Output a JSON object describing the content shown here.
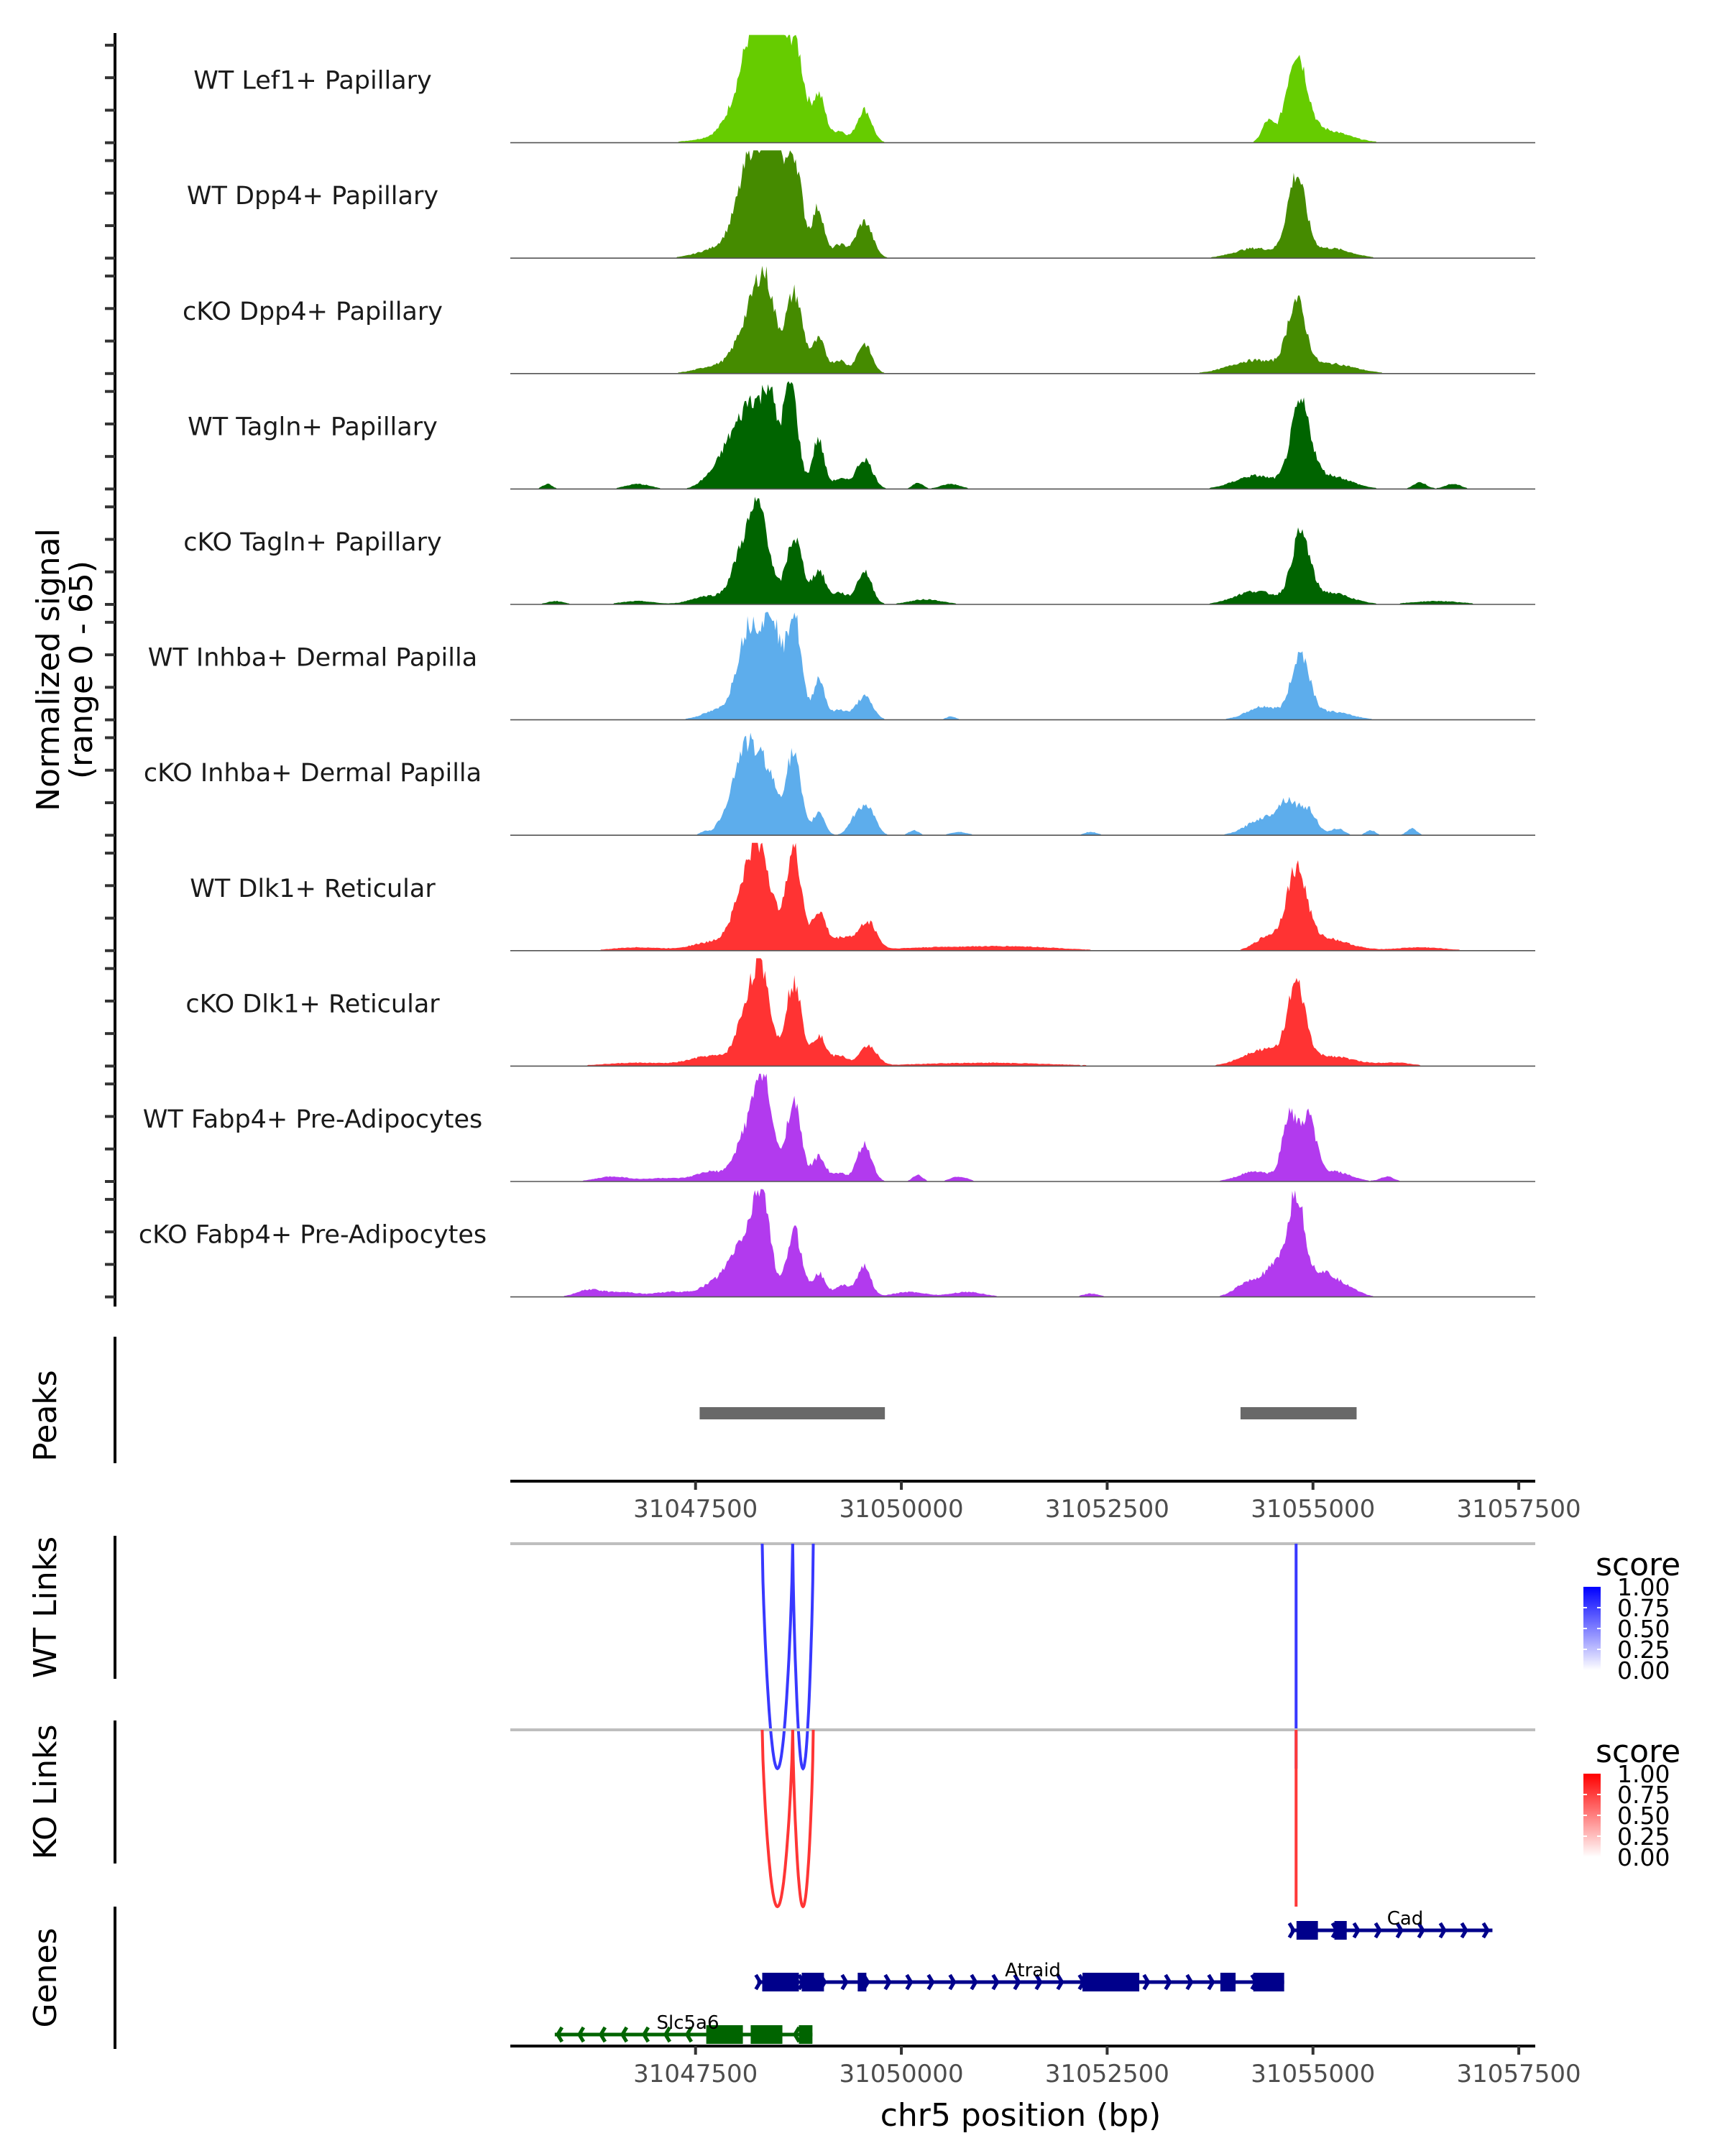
{
  "chart_data": {
    "type": "area",
    "title": "",
    "region": {
      "chrom": "chr5",
      "start": 31045250,
      "end": 31057700
    },
    "xlabel": "chr5 position (bp)",
    "x_ticks": [
      31047500,
      31050000,
      31052500,
      31055000,
      31057500
    ],
    "x_tick_labels": [
      "31047500",
      "31050000",
      "31052500",
      "31055000",
      "31057500"
    ],
    "coverage": {
      "ylabel_line1": "Normalized signal",
      "ylabel_line2": "(range 0 - 65)",
      "ylim": [
        0,
        65
      ],
      "tracks": [
        {
          "name": "WT Lef1+ Papillary",
          "color": "#66CC00",
          "peaks": [
            [
              31047800,
              3,
              300
            ],
            [
              31048100,
              30,
              180
            ],
            [
              31048300,
              60,
              150
            ],
            [
              31048450,
              58,
              90
            ],
            [
              31048700,
              62,
              110
            ],
            [
              31049000,
              28,
              80
            ],
            [
              31049250,
              7,
              80
            ],
            [
              31049550,
              20,
              90
            ],
            [
              31054450,
              12,
              70
            ],
            [
              31054800,
              50,
              120
            ],
            [
              31055100,
              8,
              300
            ]
          ]
        },
        {
          "name": "WT Dpp4+ Papillary",
          "color": "#458B00",
          "peaks": [
            [
              31047800,
              6,
              250
            ],
            [
              31048100,
              30,
              150
            ],
            [
              31048300,
              55,
              150
            ],
            [
              31048470,
              60,
              70
            ],
            [
              31048690,
              62,
              100
            ],
            [
              31048990,
              30,
              70
            ],
            [
              31049250,
              8,
              90
            ],
            [
              31049550,
              22,
              100
            ],
            [
              31054300,
              6,
              250
            ],
            [
              31054800,
              48,
              110
            ],
            [
              31055200,
              6,
              250
            ]
          ]
        },
        {
          "name": "cKO Dpp4+ Papillary",
          "color": "#458B00",
          "peaks": [
            [
              31047800,
              5,
              250
            ],
            [
              31048150,
              28,
              150
            ],
            [
              31048350,
              48,
              120
            ],
            [
              31048700,
              48,
              100
            ],
            [
              31049000,
              20,
              80
            ],
            [
              31049250,
              8,
              80
            ],
            [
              31049550,
              18,
              90
            ],
            [
              31054300,
              8,
              300
            ],
            [
              31054800,
              40,
              110
            ],
            [
              31055200,
              6,
              300
            ]
          ]
        },
        {
          "name": "WT Tagln+ Papillary",
          "color": "#006400",
          "peaks": [
            [
              31045700,
              3,
              60
            ],
            [
              31046800,
              3,
              150
            ],
            [
              31047650,
              5,
              120
            ],
            [
              31047950,
              30,
              150
            ],
            [
              31048200,
              45,
              120
            ],
            [
              31048400,
              50,
              80
            ],
            [
              31048650,
              65,
              90
            ],
            [
              31048990,
              30,
              70
            ],
            [
              31049250,
              6,
              90
            ],
            [
              31049550,
              18,
              100
            ],
            [
              31050200,
              4,
              60
            ],
            [
              31050600,
              3,
              120
            ],
            [
              31054300,
              8,
              250
            ],
            [
              31054850,
              48,
              120
            ],
            [
              31055200,
              8,
              250
            ],
            [
              31056300,
              4,
              80
            ],
            [
              31056700,
              3,
              100
            ]
          ]
        },
        {
          "name": "cKO Tagln+ Papillary",
          "color": "#006400",
          "peaks": [
            [
              31045800,
              2,
              100
            ],
            [
              31046800,
              2,
              200
            ],
            [
              31047650,
              5,
              200
            ],
            [
              31048100,
              35,
              140
            ],
            [
              31048300,
              45,
              110
            ],
            [
              31048700,
              40,
              100
            ],
            [
              31049000,
              20,
              80
            ],
            [
              31049250,
              7,
              90
            ],
            [
              31049550,
              20,
              90
            ],
            [
              31050300,
              3,
              200
            ],
            [
              31054300,
              8,
              250
            ],
            [
              31054850,
              40,
              110
            ],
            [
              31055200,
              7,
              250
            ],
            [
              31056500,
              2,
              300
            ]
          ]
        },
        {
          "name": "WT Inhba+ Dermal Papilla",
          "color": "#5DADEC",
          "peaks": [
            [
              31047800,
              6,
              200
            ],
            [
              31048100,
              38,
              120
            ],
            [
              31048300,
              42,
              130
            ],
            [
              31048450,
              40,
              80
            ],
            [
              31048690,
              65,
              90
            ],
            [
              31049000,
              25,
              70
            ],
            [
              31049250,
              6,
              90
            ],
            [
              31049550,
              14,
              100
            ],
            [
              31050600,
              2,
              60
            ],
            [
              31054400,
              8,
              200
            ],
            [
              31054850,
              38,
              110
            ],
            [
              31055200,
              5,
              250
            ]
          ]
        },
        {
          "name": "cKO Inhba+ Dermal Papilla",
          "color": "#5DADEC",
          "peaks": [
            [
              31047600,
              2,
              50
            ],
            [
              31047900,
              12,
              120
            ],
            [
              31048100,
              46,
              120
            ],
            [
              31048350,
              40,
              130
            ],
            [
              31048690,
              48,
              90
            ],
            [
              31049000,
              14,
              70
            ],
            [
              31049450,
              10,
              90
            ],
            [
              31049600,
              15,
              90
            ],
            [
              31050150,
              3,
              60
            ],
            [
              31050700,
              2,
              100
            ],
            [
              31052300,
              2,
              80
            ],
            [
              31054400,
              10,
              200
            ],
            [
              31054700,
              18,
              120
            ],
            [
              31054950,
              14,
              100
            ],
            [
              31055300,
              4,
              80
            ],
            [
              31055700,
              3,
              60
            ],
            [
              31056200,
              4,
              60
            ]
          ]
        },
        {
          "name": "WT Dlk1+ Reticular",
          "color": "#FF3333",
          "peaks": [
            [
              31046800,
              2,
              300
            ],
            [
              31047700,
              5,
              250
            ],
            [
              31048100,
              32,
              150
            ],
            [
              31048300,
              50,
              130
            ],
            [
              31048690,
              60,
              100
            ],
            [
              31049000,
              22,
              80
            ],
            [
              31049300,
              8,
              150
            ],
            [
              31049600,
              16,
              100
            ],
            [
              31050500,
              2,
              600
            ],
            [
              31051500,
              2,
              500
            ],
            [
              31054450,
              8,
              150
            ],
            [
              31054800,
              45,
              120
            ],
            [
              31055100,
              8,
              300
            ],
            [
              31056300,
              2,
              300
            ]
          ]
        },
        {
          "name": "cKO Dlk1+ Reticular",
          "color": "#FF3333",
          "peaks": [
            [
              31046800,
              2,
              400
            ],
            [
              31047700,
              6,
              250
            ],
            [
              31048150,
              36,
              130
            ],
            [
              31048320,
              45,
              100
            ],
            [
              31048690,
              50,
              100
            ],
            [
              31049000,
              18,
              80
            ],
            [
              31049250,
              6,
              100
            ],
            [
              31049600,
              12,
              100
            ],
            [
              31051000,
              2,
              800
            ],
            [
              31054400,
              10,
              250
            ],
            [
              31054800,
              44,
              110
            ],
            [
              31055200,
              6,
              300
            ],
            [
              31056000,
              2,
              200
            ]
          ]
        },
        {
          "name": "WT Fabp4+ Pre-Adipocytes",
          "color": "#B23AEE",
          "peaks": [
            [
              31046500,
              3,
              200
            ],
            [
              31047100,
              2,
              200
            ],
            [
              31047700,
              6,
              200
            ],
            [
              31048100,
              25,
              120
            ],
            [
              31048320,
              62,
              110
            ],
            [
              31048690,
              48,
              90
            ],
            [
              31049000,
              15,
              80
            ],
            [
              31049250,
              5,
              80
            ],
            [
              31049550,
              22,
              90
            ],
            [
              31050200,
              4,
              60
            ],
            [
              31050700,
              3,
              100
            ],
            [
              31054300,
              6,
              200
            ],
            [
              31054720,
              40,
              90
            ],
            [
              31054950,
              36,
              90
            ],
            [
              31055250,
              6,
              200
            ],
            [
              31055900,
              3,
              80
            ]
          ]
        },
        {
          "name": "cKO Fabp4+ Pre-Adipocytes",
          "color": "#B23AEE",
          "peaks": [
            [
              31046200,
              4,
              150
            ],
            [
              31046600,
              3,
              200
            ],
            [
              31047200,
              3,
              200
            ],
            [
              31047800,
              10,
              200
            ],
            [
              31048100,
              30,
              150
            ],
            [
              31048310,
              56,
              100
            ],
            [
              31048700,
              40,
              90
            ],
            [
              31049000,
              14,
              80
            ],
            [
              31049300,
              7,
              100
            ],
            [
              31049550,
              18,
              80
            ],
            [
              31050100,
              3,
              200
            ],
            [
              31050800,
              3,
              200
            ],
            [
              31052300,
              2,
              100
            ],
            [
              31054200,
              8,
              150
            ],
            [
              31054550,
              18,
              150
            ],
            [
              31054800,
              56,
              100
            ],
            [
              31055100,
              14,
              150
            ],
            [
              31055400,
              6,
              150
            ]
          ]
        }
      ]
    },
    "peaks_track": {
      "title": "Peaks",
      "color": "#696969",
      "ranges": [
        [
          31047550,
          31049800
        ],
        [
          31054120,
          31055530
        ]
      ]
    },
    "links": [
      {
        "title": "WT Links",
        "legend_title": "score",
        "color_high": "#0000FF",
        "color_low": "#FFFFFF",
        "legend_ticks": [
          "1.00",
          "0.75",
          "0.50",
          "0.25",
          "0.00"
        ],
        "arcs": [
          {
            "start": 31048310,
            "end": 31048680,
            "score": 0.62
          },
          {
            "start": 31048680,
            "end": 31048930,
            "score": 0.62
          },
          {
            "start": 31054795,
            "end": 31054805,
            "score": 0.62
          }
        ]
      },
      {
        "title": "KO Links",
        "legend_title": "score",
        "color_high": "#FF0000",
        "color_low": "#FFFFFF",
        "legend_ticks": [
          "1.00",
          "0.75",
          "0.50",
          "0.25",
          "0.00"
        ],
        "arcs": [
          {
            "start": 31048310,
            "end": 31048680,
            "score": 0.72
          },
          {
            "start": 31048680,
            "end": 31048930,
            "score": 0.72
          },
          {
            "start": 31054795,
            "end": 31054805,
            "score": 0.55
          }
        ]
      }
    ],
    "genes": {
      "title": "Genes",
      "items": [
        {
          "name": "Cad",
          "strand": "+",
          "row": 0,
          "color": "#00008B",
          "start": 31054730,
          "end": 31057180,
          "exons": [
            [
              31054800,
              31055060
            ],
            [
              31055260,
              31055410
            ]
          ]
        },
        {
          "name": "Atraid",
          "strand": "+",
          "row": 1,
          "color": "#00008B",
          "start": 31048250,
          "end": 31054650,
          "exons": [
            [
              31048310,
              31048755
            ],
            [
              31048790,
              31049060
            ],
            [
              31049470,
              31049575
            ],
            [
              31052200,
              31052890
            ],
            [
              31053875,
              31054060
            ],
            [
              31054275,
              31054650
            ]
          ]
        },
        {
          "name": "Slc5a6",
          "strand": "-",
          "row": 2,
          "color": "#006400",
          "start": 31045790,
          "end": 31048920,
          "exons": [
            [
              31047630,
              31048075
            ],
            [
              31048170,
              31048555
            ],
            [
              31048755,
              31048920
            ]
          ]
        }
      ]
    }
  }
}
